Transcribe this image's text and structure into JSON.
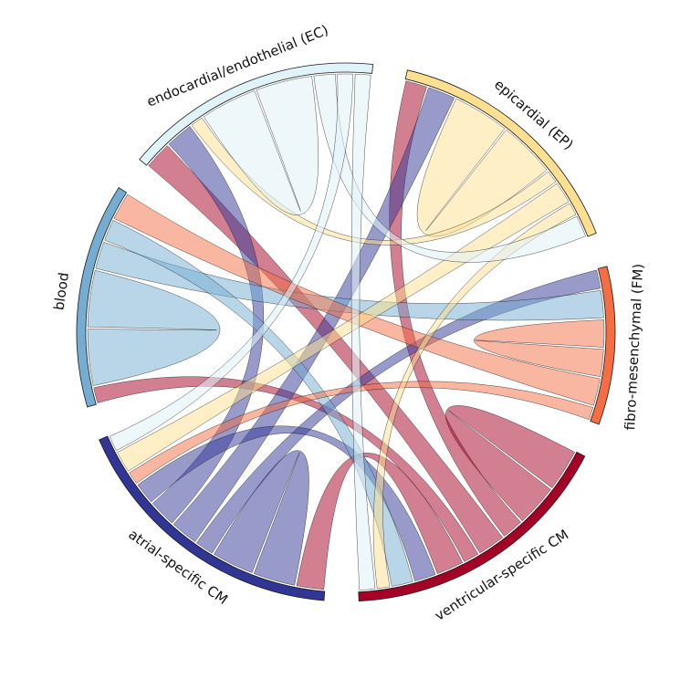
{
  "chart_data": {
    "type": "chord",
    "title": "",
    "groups": [
      {
        "name": "atrial-specific CM",
        "color": "#313695"
      },
      {
        "name": "blood",
        "color": "#74add1"
      },
      {
        "name": "endocardial/endothelial (EC)",
        "color": "#e0f3f8"
      },
      {
        "name": "epicardial (EP)",
        "color": "#fee090"
      },
      {
        "name": "fibro-mesenchymal (FM)",
        "color": "#f46d43"
      },
      {
        "name": "ventricular-specific CM",
        "color": "#a50026"
      }
    ],
    "connections": [
      {
        "source": "ventricular-specific CM",
        "target": "ventricular-specific CM",
        "value": 1.5
      },
      {
        "source": "ventricular-specific CM",
        "target": "epicardial (EP)",
        "value": 0.8
      },
      {
        "source": "ventricular-specific CM",
        "target": "endocardial/endothelial (EC)",
        "value": 1.0
      },
      {
        "source": "ventricular-specific CM",
        "target": "blood",
        "value": 0.6
      },
      {
        "source": "ventricular-specific CM",
        "target": "atrial-specific CM",
        "value": 1.0
      },
      {
        "source": "atrial-specific CM",
        "target": "atrial-specific CM",
        "value": 1.5
      },
      {
        "source": "atrial-specific CM",
        "target": "fibro-mesenchymal (FM)",
        "value": 0.7
      },
      {
        "source": "atrial-specific CM",
        "target": "epicardial (EP)",
        "value": 1.0
      },
      {
        "source": "atrial-specific CM",
        "target": "endocardial/endothelial (EC)",
        "value": 1.0
      },
      {
        "source": "atrial-specific CM",
        "target": "ventricular-specific CM",
        "value": 0.8
      },
      {
        "source": "blood",
        "target": "blood",
        "value": 2.0
      },
      {
        "source": "blood",
        "target": "fibro-mesenchymal (FM)",
        "value": 1.0
      },
      {
        "source": "blood",
        "target": "ventricular-specific CM",
        "value": 0.8
      },
      {
        "source": "fibro-mesenchymal (FM)",
        "target": "fibro-mesenchymal (FM)",
        "value": 1.0
      },
      {
        "source": "fibro-mesenchymal (FM)",
        "target": "blood",
        "value": 1.0
      },
      {
        "source": "fibro-mesenchymal (FM)",
        "target": "atrial-specific CM",
        "value": 0.5
      },
      {
        "source": "epicardial (EP)",
        "target": "epicardial (EP)",
        "value": 2.0
      },
      {
        "source": "epicardial (EP)",
        "target": "endocardial/endothelial (EC)",
        "value": 0.5
      },
      {
        "source": "epicardial (EP)",
        "target": "atrial-specific CM",
        "value": 0.8
      },
      {
        "source": "epicardial (EP)",
        "target": "ventricular-specific CM",
        "value": 0.5
      },
      {
        "source": "endocardial/endothelial (EC)",
        "target": "endocardial/endothelial (EC)",
        "value": 2.0
      },
      {
        "source": "endocardial/endothelial (EC)",
        "target": "epicardial (EP)",
        "value": 0.8
      },
      {
        "source": "endocardial/endothelial (EC)",
        "target": "atrial-specific CM",
        "value": 0.6
      },
      {
        "source": "endocardial/endothelial (EC)",
        "target": "ventricular-specific CM",
        "value": 0.6
      }
    ]
  }
}
